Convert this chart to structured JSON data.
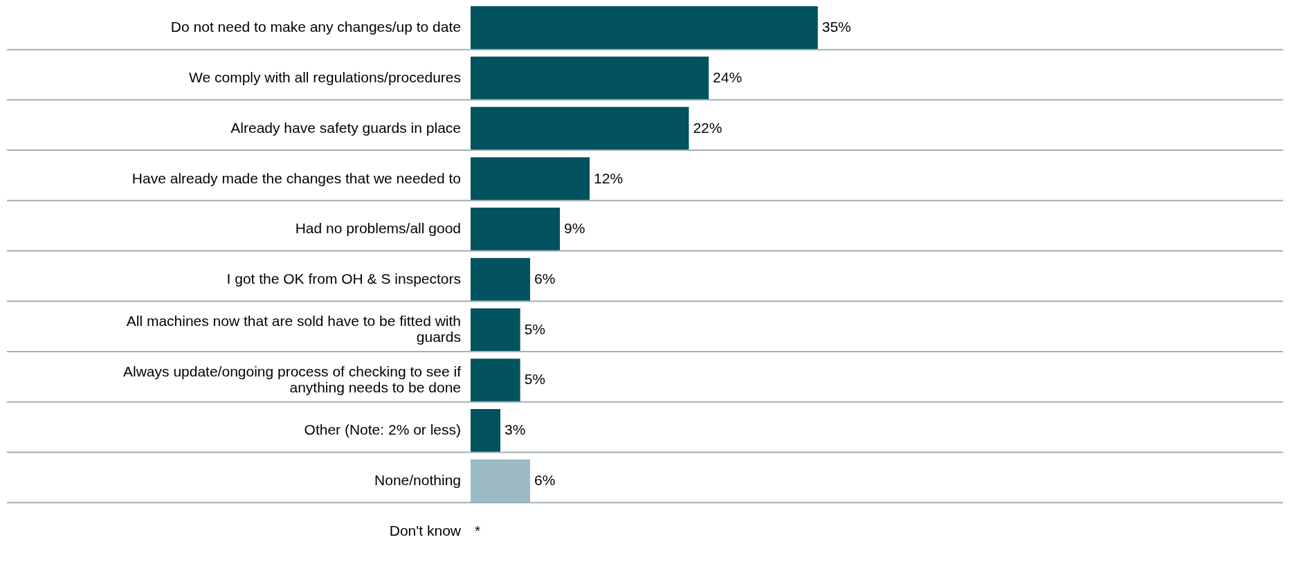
{
  "chart_data": {
    "type": "bar",
    "orientation": "horizontal",
    "categories": [
      "Do not need to make any changes/up to date",
      "We comply with all regulations/procedures",
      "Already have safety guards in place",
      "Have already made the changes that we needed to",
      "Had no problems/all good",
      "I got the OK from OH & S inspectors",
      "All machines now that are sold have to be fitted with guards",
      "Always update/ongoing process of checking to see if anything needs to be done",
      "Other (Note: 2% or less)",
      "None/nothing",
      "Don't know"
    ],
    "values": [
      35,
      24,
      22,
      12,
      9,
      6,
      5,
      5,
      3,
      6,
      null
    ],
    "colors": [
      "#03525f",
      "#03525f",
      "#03525f",
      "#03525f",
      "#03525f",
      "#03525f",
      "#03525f",
      "#03525f",
      "#03525f",
      "#9bbac5",
      "#03525f"
    ],
    "value_labels": [
      "35%",
      "24%",
      "22%",
      "12%",
      "9%",
      "6%",
      "5%",
      "5%",
      "3%",
      "6%",
      "*"
    ],
    "grid": "y"
  }
}
